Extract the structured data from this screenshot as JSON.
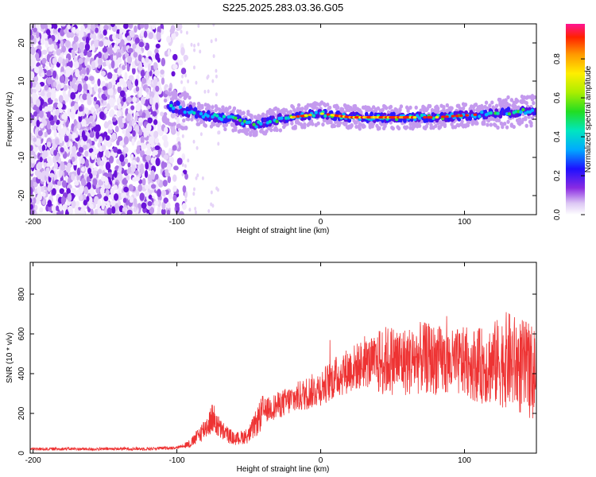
{
  "title": "S225.2025.283.03.36.G05",
  "chart_data": [
    {
      "type": "heatmap",
      "xlabel": "Height of straight line (km)",
      "ylabel": "Frequency (Hz)",
      "xlim": [
        -202,
        150
      ],
      "ylim": [
        -25,
        25
      ],
      "x_ticks": [
        -200,
        -100,
        0,
        100
      ],
      "y_ticks": [
        -20,
        -10,
        0,
        10,
        20
      ],
      "colorbar": {
        "label": "Normalized spectral amplitude",
        "range": [
          0,
          0.98
        ],
        "ticks": [
          0.0,
          0.2,
          0.4,
          0.6,
          0.8
        ]
      },
      "ridge": {
        "x": [
          -105,
          -90,
          -80,
          -70,
          -60,
          -50,
          -45,
          -40,
          -30,
          -20,
          -10,
          0,
          10,
          20,
          40,
          60,
          80,
          100,
          120,
          140,
          150
        ],
        "freq": [
          3.5,
          2,
          1,
          0.5,
          0,
          -1,
          -1.5,
          -1,
          0,
          0.5,
          1,
          1.5,
          1,
          0.5,
          0.5,
          0.5,
          0.5,
          1,
          1.5,
          2,
          2.5
        ]
      },
      "noise_region": {
        "x_from": -202,
        "x_to": -105,
        "note": "scattered broadband noise"
      }
    },
    {
      "type": "line",
      "xlabel": "Height of straight line (km)",
      "ylabel": "SNR (10 * v/v)",
      "xlim": [
        -202,
        150
      ],
      "ylim": [
        0,
        960
      ],
      "x_ticks": [
        -200,
        -100,
        0,
        100
      ],
      "y_ticks": [
        0,
        200,
        400,
        600,
        800
      ],
      "series": [
        {
          "name": "SNR",
          "color": "#ee3333",
          "x": [
            -202,
            -180,
            -160,
            -140,
            -120,
            -100,
            -90,
            -80,
            -75,
            -70,
            -60,
            -50,
            -40,
            -30,
            -20,
            -10,
            0,
            10,
            20,
            30,
            40,
            50,
            60,
            70,
            80,
            90,
            100,
            110,
            120,
            130,
            140,
            150
          ],
          "y": [
            20,
            22,
            20,
            22,
            22,
            28,
            50,
            130,
            180,
            120,
            70,
            90,
            210,
            240,
            270,
            300,
            330,
            380,
            420,
            450,
            460,
            470,
            460,
            480,
            470,
            450,
            460,
            440,
            450,
            470,
            430,
            400
          ]
        }
      ]
    }
  ]
}
